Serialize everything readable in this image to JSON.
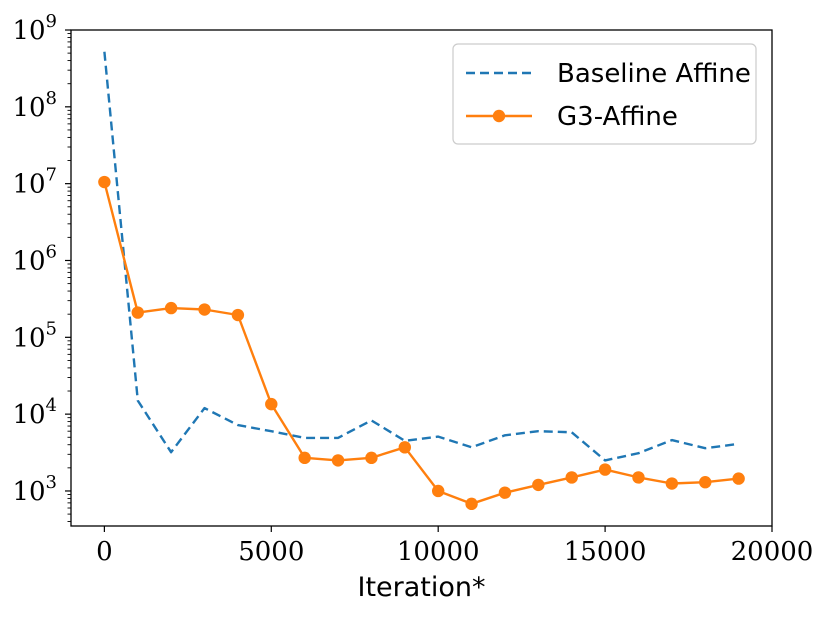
{
  "chart_data": {
    "type": "line",
    "title": "",
    "xlabel": "Iteration*",
    "ylabel": "",
    "yscale": "log",
    "xlim": [
      -1000,
      20000
    ],
    "ylim": [
      350,
      1000000000
    ],
    "grid": false,
    "legend_position": "top-right",
    "x_ticks": [
      0,
      5000,
      10000,
      15000,
      20000
    ],
    "x_tick_labels": [
      "0",
      "5000",
      "10000",
      "15000",
      "20000"
    ],
    "y_ticks": [
      1000,
      10000,
      100000,
      1000000,
      10000000,
      100000000,
      1000000000
    ],
    "y_tick_labels": [
      {
        "base": "10",
        "exp": "3"
      },
      {
        "base": "10",
        "exp": "4"
      },
      {
        "base": "10",
        "exp": "5"
      },
      {
        "base": "10",
        "exp": "6"
      },
      {
        "base": "10",
        "exp": "7"
      },
      {
        "base": "10",
        "exp": "8"
      },
      {
        "base": "10",
        "exp": "9"
      }
    ],
    "x": [
      0,
      1000,
      2000,
      3000,
      4000,
      5000,
      6000,
      7000,
      8000,
      9000,
      10000,
      11000,
      12000,
      13000,
      14000,
      15000,
      16000,
      17000,
      18000,
      19000
    ],
    "series": [
      {
        "name": "Baseline Affine",
        "color": "#1f77b4",
        "style": "dashed",
        "marker": "none",
        "values": [
          520000000,
          15000,
          3200,
          12000,
          7200,
          6000,
          4900,
          4900,
          8300,
          4500,
          5100,
          3700,
          5300,
          6000,
          5800,
          2500,
          3100,
          4600,
          3600,
          4100
        ]
      },
      {
        "name": "G3-Affine",
        "color": "#ff7f0e",
        "style": "solid",
        "marker": "circle",
        "values": [
          10500000,
          210000,
          240000,
          230000,
          195000,
          13500,
          2700,
          2500,
          2700,
          3700,
          1000,
          680,
          950,
          1200,
          1500,
          1900,
          1500,
          1250,
          1300,
          1450
        ]
      }
    ]
  }
}
